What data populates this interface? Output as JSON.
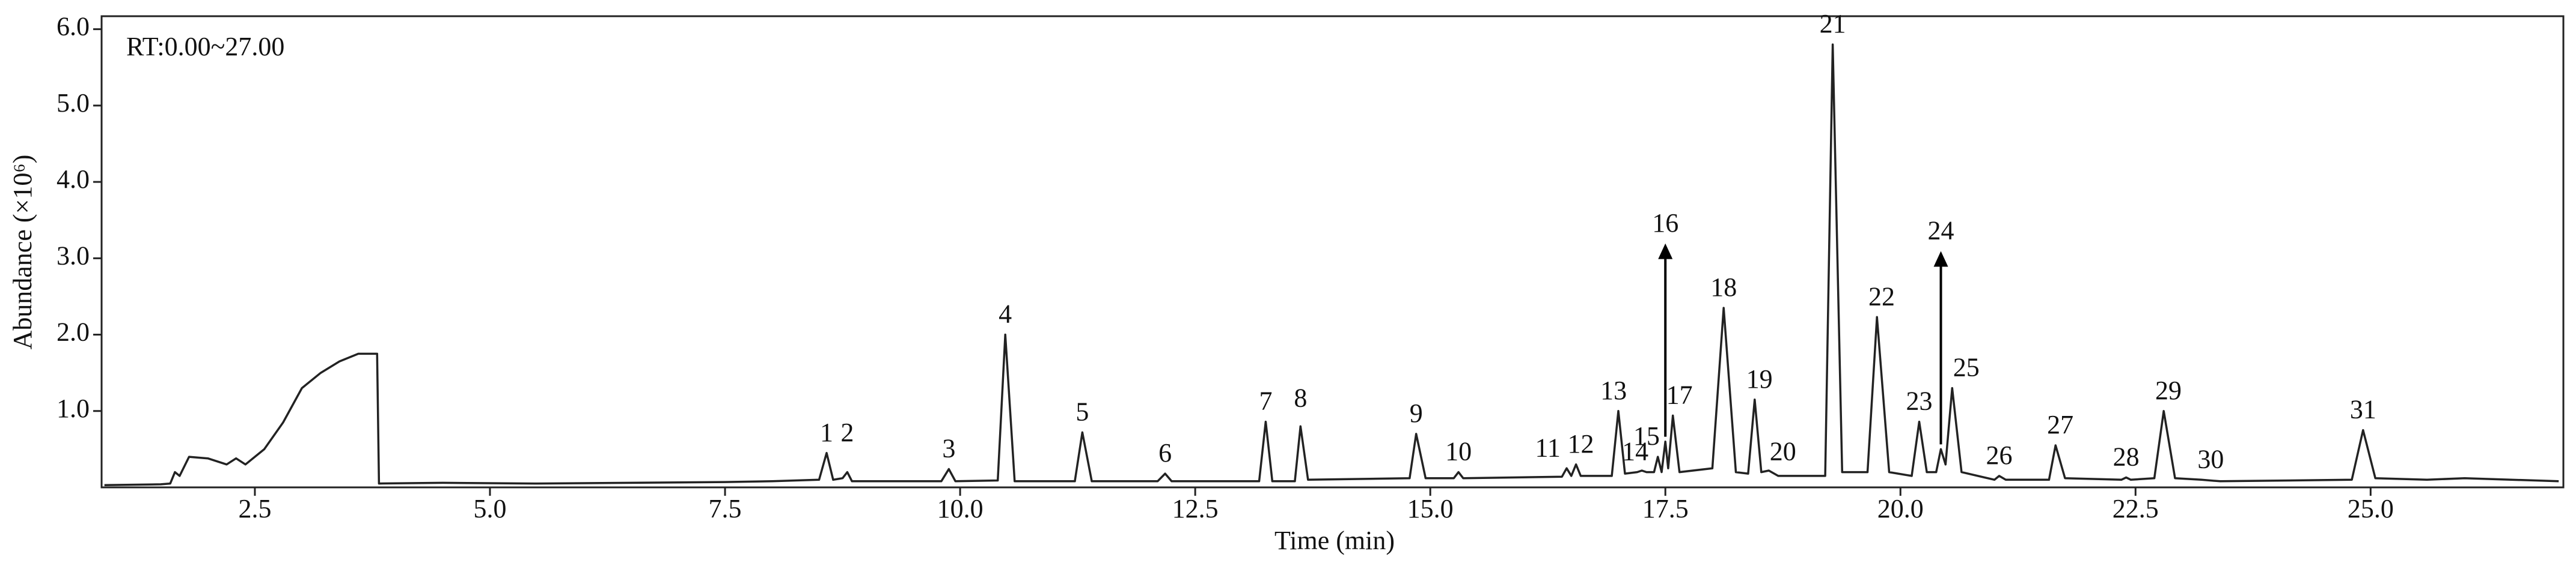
{
  "chart_data": {
    "type": "line",
    "annotation": "RT:0.00~27.00",
    "xlabel": "Time (min)",
    "ylabel": "Abundance (×10⁶)",
    "xlim": [
      0.87,
      27.05
    ],
    "ylim": [
      0,
      6.17
    ],
    "xticks": [
      2.5,
      {
        "value": 5,
        "label": "5.0"
      },
      7.5,
      {
        "value": 10,
        "label": "10.0"
      },
      12.5,
      {
        "value": 15,
        "label": "15.0"
      },
      17.5,
      {
        "value": 20,
        "label": "20.0"
      },
      22.5,
      {
        "value": 25,
        "label": "25.0"
      }
    ],
    "yticks": [
      {
        "value": 1,
        "label": "1.0"
      },
      {
        "value": 2,
        "label": "2.0"
      },
      {
        "value": 3,
        "label": "3.0"
      },
      {
        "value": 4,
        "label": "4.0"
      },
      {
        "value": 5,
        "label": "5.0"
      },
      {
        "value": 6,
        "label": "6.0"
      }
    ],
    "series": [
      {
        "color": "#222222",
        "x": [
          0.9,
          1.5,
          1.6,
          1.65,
          1.7,
          1.8,
          2.0,
          2.2,
          2.3,
          2.4,
          2.6,
          2.8,
          3.0,
          3.2,
          3.4,
          3.6,
          3.8,
          3.82,
          4.5,
          5.5,
          6.5,
          7.5,
          8.0,
          8.5,
          8.58,
          8.65,
          8.75,
          8.8,
          8.85,
          9.8,
          9.88,
          9.95,
          10.4,
          10.48,
          10.58,
          11.22,
          11.3,
          11.4,
          12.1,
          12.18,
          12.25,
          13.18,
          13.25,
          13.32,
          13.56,
          13.62,
          13.7,
          14.78,
          14.85,
          14.95,
          15.25,
          15.3,
          15.35,
          16.4,
          16.45,
          16.5,
          16.55,
          16.6,
          16.93,
          17.0,
          17.07,
          17.2,
          17.25,
          17.3,
          17.38,
          17.42,
          17.46,
          17.5,
          17.53,
          17.58,
          17.65,
          18.0,
          18.12,
          18.25,
          18.38,
          18.45,
          18.52,
          18.6,
          18.7,
          19.2,
          19.28,
          19.38,
          19.65,
          19.75,
          19.88,
          20.12,
          20.2,
          20.28,
          20.38,
          20.43,
          20.48,
          20.55,
          20.65,
          21.0,
          21.05,
          21.12,
          21.58,
          21.65,
          21.75,
          22.35,
          22.4,
          22.45,
          22.7,
          22.8,
          22.92,
          23.2,
          23.4,
          24.8,
          24.92,
          25.05,
          25.6,
          26.0,
          27.0
        ],
        "values": [
          0.03,
          0.04,
          0.05,
          0.2,
          0.15,
          0.4,
          0.38,
          0.3,
          0.38,
          0.3,
          0.5,
          0.85,
          1.3,
          1.5,
          1.65,
          1.75,
          1.75,
          0.05,
          0.06,
          0.05,
          0.06,
          0.07,
          0.08,
          0.1,
          0.45,
          0.1,
          0.12,
          0.2,
          0.08,
          0.08,
          0.24,
          0.08,
          0.09,
          2.0,
          0.08,
          0.08,
          0.72,
          0.08,
          0.08,
          0.18,
          0.08,
          0.08,
          0.86,
          0.08,
          0.08,
          0.8,
          0.1,
          0.12,
          0.7,
          0.12,
          0.12,
          0.2,
          0.12,
          0.14,
          0.25,
          0.15,
          0.3,
          0.15,
          0.15,
          1.0,
          0.18,
          0.2,
          0.22,
          0.2,
          0.2,
          0.4,
          0.2,
          0.6,
          0.25,
          0.94,
          0.2,
          0.25,
          2.35,
          0.2,
          0.18,
          1.15,
          0.2,
          0.22,
          0.15,
          0.15,
          5.8,
          0.2,
          0.2,
          2.23,
          0.2,
          0.15,
          0.86,
          0.2,
          0.2,
          0.5,
          0.3,
          1.3,
          0.2,
          0.1,
          0.15,
          0.1,
          0.1,
          0.55,
          0.12,
          0.1,
          0.13,
          0.1,
          0.12,
          1.0,
          0.12,
          0.1,
          0.08,
          0.1,
          0.75,
          0.12,
          0.1,
          0.12,
          0.08
        ]
      }
    ],
    "peaks": [
      {
        "label": "1",
        "x": 8.58,
        "y": 0.45
      },
      {
        "label": "2",
        "x": 8.8,
        "y": 0.45
      },
      {
        "label": "3",
        "x": 9.88,
        "y": 0.24
      },
      {
        "label": "4",
        "x": 10.48,
        "y": 2.0
      },
      {
        "label": "5",
        "x": 11.3,
        "y": 0.72
      },
      {
        "label": "6",
        "x": 12.18,
        "y": 0.18
      },
      {
        "label": "7",
        "x": 13.25,
        "y": 0.86
      },
      {
        "label": "8",
        "x": 13.62,
        "y": 0.9
      },
      {
        "label": "9",
        "x": 14.85,
        "y": 0.7
      },
      {
        "label": "10",
        "x": 15.3,
        "y": 0.2
      },
      {
        "label": "11",
        "x": 16.25,
        "y": 0.25
      },
      {
        "label": "12",
        "x": 16.6,
        "y": 0.3
      },
      {
        "label": "13",
        "x": 16.95,
        "y": 1.0
      },
      {
        "label": "14",
        "x": 17.18,
        "y": 0.2
      },
      {
        "label": "15",
        "x": 17.3,
        "y": 0.4
      },
      {
        "label": "16",
        "x": 17.5,
        "y": 0.6,
        "arrow": true
      },
      {
        "label": "17",
        "x": 17.65,
        "y": 0.94
      },
      {
        "label": "18",
        "x": 18.12,
        "y": 2.35
      },
      {
        "label": "19",
        "x": 18.5,
        "y": 1.15
      },
      {
        "label": "20",
        "x": 18.75,
        "y": 0.2
      },
      {
        "label": "21",
        "x": 19.28,
        "y": 5.8
      },
      {
        "label": "22",
        "x": 19.8,
        "y": 2.23
      },
      {
        "label": "23",
        "x": 20.2,
        "y": 0.86
      },
      {
        "label": "24",
        "x": 20.43,
        "y": 0.5,
        "arrow": true
      },
      {
        "label": "25",
        "x": 20.7,
        "y": 1.3
      },
      {
        "label": "26",
        "x": 21.05,
        "y": 0.15
      },
      {
        "label": "27",
        "x": 21.7,
        "y": 0.55
      },
      {
        "label": "28",
        "x": 22.4,
        "y": 0.13
      },
      {
        "label": "29",
        "x": 22.85,
        "y": 1.0
      },
      {
        "label": "30",
        "x": 23.3,
        "y": 0.1
      },
      {
        "label": "31",
        "x": 24.92,
        "y": 0.75
      }
    ]
  }
}
